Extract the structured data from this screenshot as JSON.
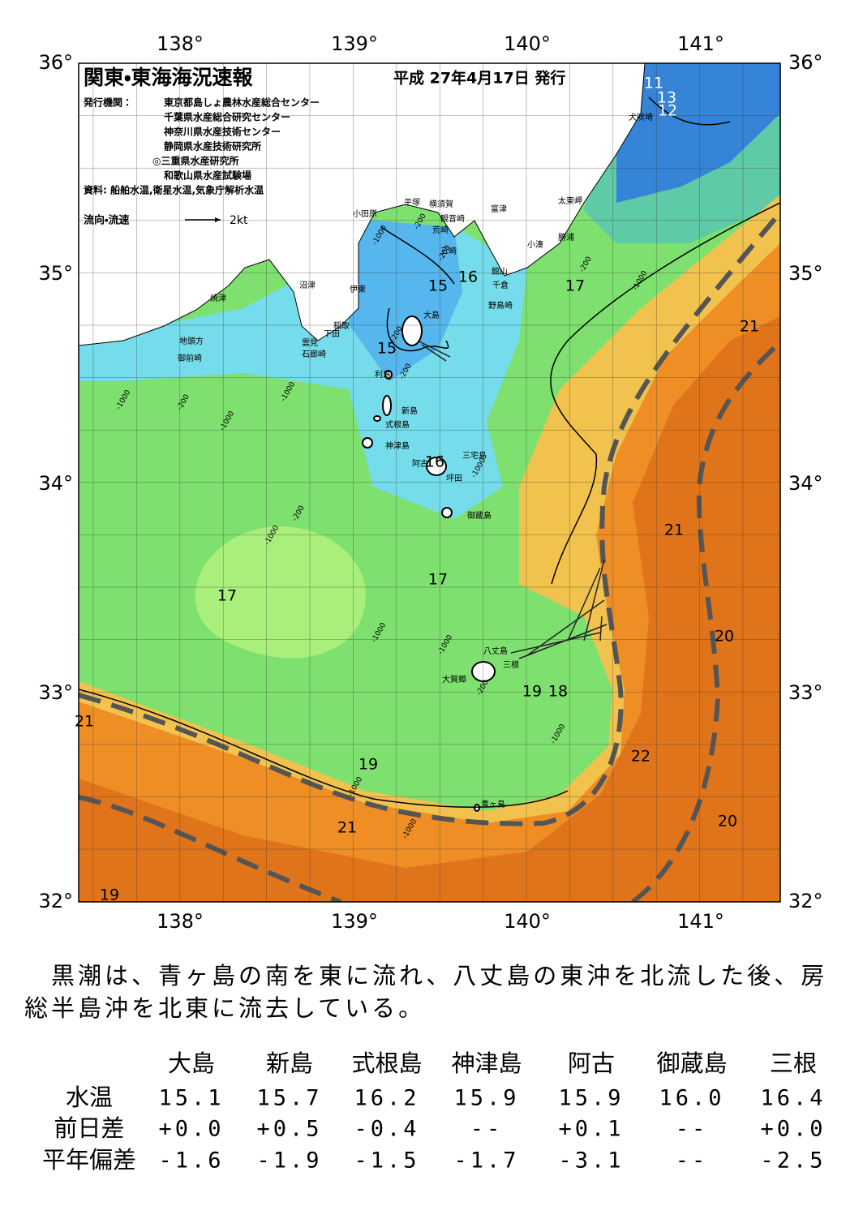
{
  "header": {
    "title": "関東・東海海況速報",
    "date": "平成 27年4月17日 発行",
    "publisher_label": "発行機関：",
    "publishers": [
      "東京都島しょ農林水産総合センター",
      "千葉県水産総合研究センター",
      "神奈川県水産技術センター",
      "静岡県水産技術研究所",
      "◎三重県水産研究所",
      "和歌山県水産試験場"
    ],
    "source": "資料: 船舶水温,衛星水温,気象庁解析水温",
    "legend": {
      "label": "流向・流速",
      "speed": "2kt"
    }
  },
  "map": {
    "lon_labels": [
      "138°",
      "139°",
      "140°",
      "141°"
    ],
    "lat_labels": [
      "36°",
      "35°",
      "34°",
      "33°",
      "32°"
    ],
    "places": [
      "小田原",
      "平塚",
      "横須賀",
      "観音崎",
      "富津",
      "荒崎",
      "三崎",
      "館山",
      "千倉",
      "野島崎",
      "太東岬",
      "勝浦",
      "小湊",
      "犬吠埼",
      "沼津",
      "伊東",
      "焼津",
      "稲取",
      "下田",
      "雲見",
      "石廊崎",
      "地頭方",
      "御前崎",
      "大島",
      "利島",
      "新島",
      "式根島",
      "神津島",
      "三宅島",
      "阿古",
      "坪田",
      "御蔵島",
      "八丈島",
      "三根",
      "大賀郷",
      "青ヶ島"
    ],
    "isotherms": [
      "11",
      "13",
      "12",
      "15",
      "16",
      "17",
      "21",
      "15",
      "16",
      "21",
      "17",
      "17",
      "20",
      "19",
      "18",
      "21",
      "22",
      "19",
      "20",
      "21",
      "19"
    ],
    "depths": [
      "-200",
      "-1000",
      "-200",
      "-200",
      "-1000",
      "-200",
      "-200",
      "-1000",
      "-200",
      "-1000",
      "-1000",
      "-1000",
      "-200",
      "-1000",
      "-1000",
      "-1000",
      "-200",
      "-1000",
      "-1000",
      "-1000"
    ]
  },
  "description": "　黒潮は、青ヶ島の南を東に流れ、八丈島の東沖を北流した後、房総半島沖を北東に流去している。",
  "table": {
    "columns": [
      "大島",
      "新島",
      "式根島",
      "神津島",
      "阿古",
      "御蔵島",
      "三根"
    ],
    "rows": [
      {
        "label": "水温",
        "values": [
          "15.1",
          "15.7",
          "16.2",
          "15.9",
          "15.9",
          "16.0",
          "16.4"
        ]
      },
      {
        "label": "前日差",
        "values": [
          "+0.0",
          "+0.5",
          "-0.4",
          "--",
          "+0.1",
          "--",
          "+0.0"
        ]
      },
      {
        "label": "平年偏差",
        "values": [
          "-1.6",
          "-1.9",
          "-1.5",
          "-1.7",
          "-3.1",
          "--",
          "-2.5"
        ]
      }
    ]
  }
}
